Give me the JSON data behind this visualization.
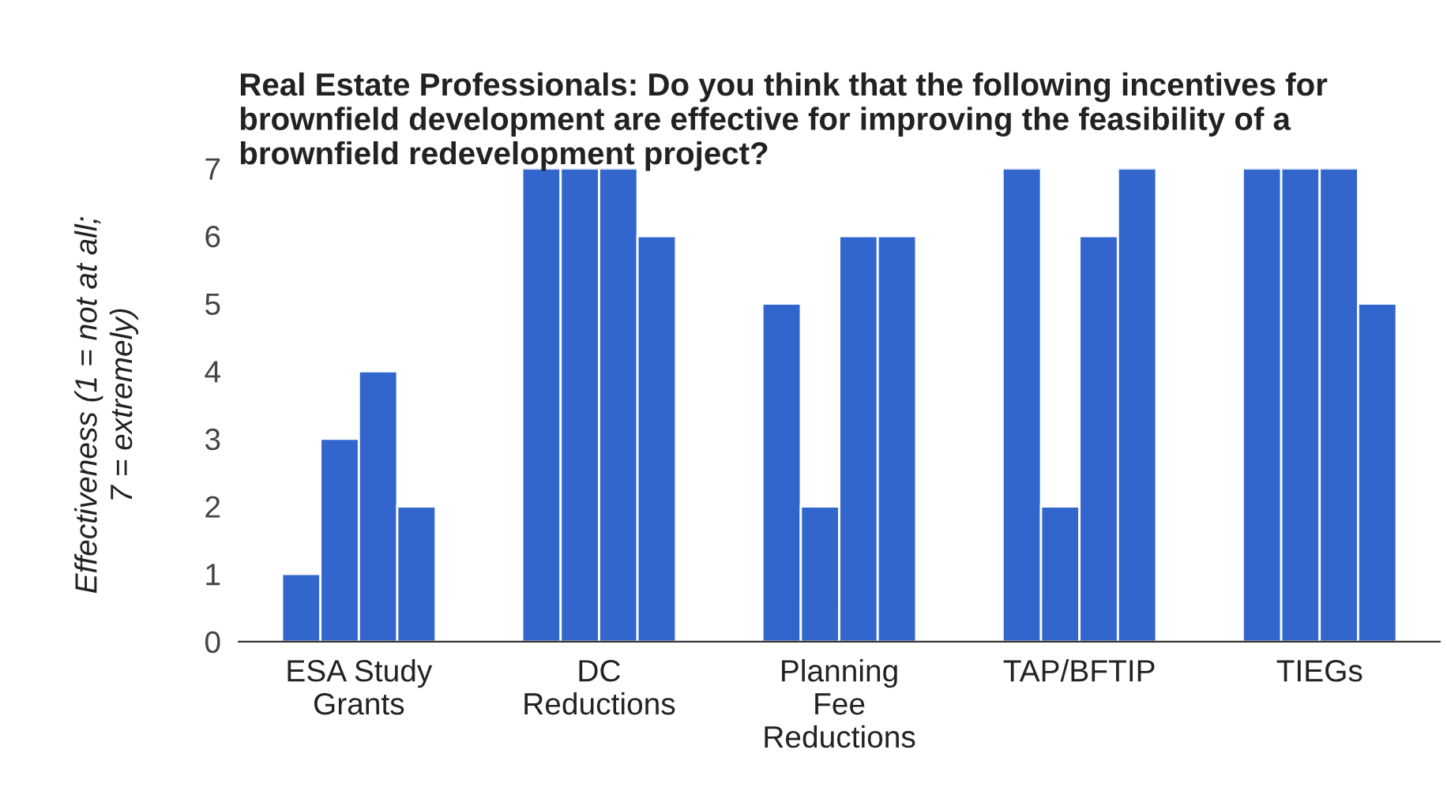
{
  "chart_data": {
    "type": "bar",
    "title": "Real Estate Professionals: Do you think that the following incentives for brownfield development are effective for improving the feasibility of a brownfield redevelopment project?",
    "ylabel": "Effectiveness (1 = not at all;\n7 = extremely)",
    "categories": [
      "ESA Study\nGrants",
      "DC\nReductions",
      "Planning\nFee\nReductions",
      "TAP/BFTIP",
      "TIEGs"
    ],
    "series": [
      {
        "color": "#3366cc",
        "values": [
          1,
          7,
          5,
          7,
          7
        ]
      },
      {
        "color": "#3366cc",
        "values": [
          3,
          7,
          2,
          2,
          7
        ]
      },
      {
        "color": "#3366cc",
        "values": [
          4,
          7,
          6,
          6,
          7
        ]
      },
      {
        "color": "#3366cc",
        "values": [
          2,
          6,
          6,
          7,
          5
        ]
      }
    ],
    "ylim": [
      0,
      7
    ],
    "yticks": [
      0,
      1,
      2,
      3,
      4,
      5,
      6,
      7
    ],
    "grid": false,
    "legend": false
  }
}
